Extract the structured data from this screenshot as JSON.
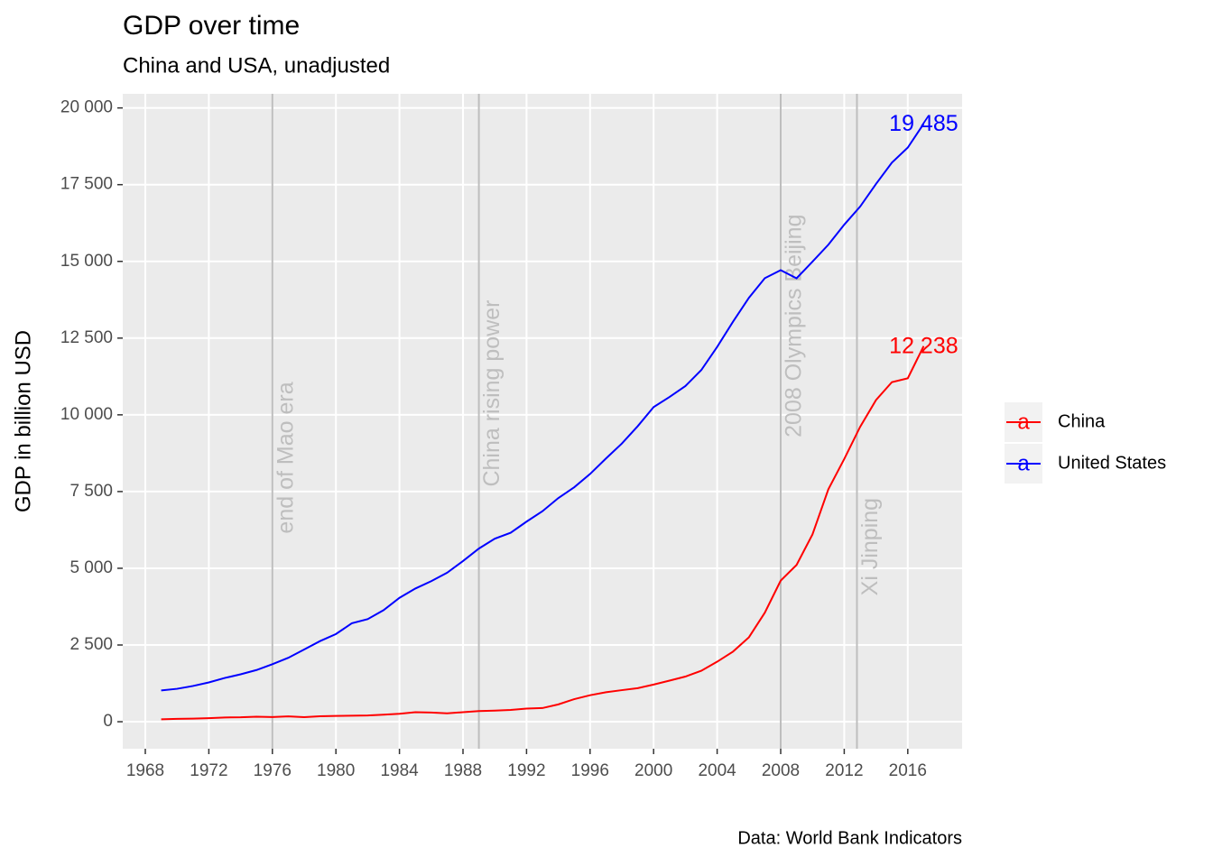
{
  "chart_data": {
    "type": "line",
    "title": "GDP over time",
    "subtitle": "China and USA, unadjusted",
    "y_label": "GDP in billion USD",
    "caption": "Data: World Bank Indicators",
    "x": [
      1969,
      1970,
      1971,
      1972,
      1973,
      1974,
      1975,
      1976,
      1977,
      1978,
      1979,
      1980,
      1981,
      1982,
      1983,
      1984,
      1985,
      1986,
      1987,
      1988,
      1989,
      1990,
      1991,
      1992,
      1993,
      1994,
      1995,
      1996,
      1997,
      1998,
      1999,
      2000,
      2001,
      2002,
      2003,
      2004,
      2005,
      2006,
      2007,
      2008,
      2009,
      2010,
      2011,
      2012,
      2013,
      2014,
      2015,
      2016,
      2017
    ],
    "series": [
      {
        "name": "China",
        "color": "#ff0000",
        "values": [
          80,
          93,
          100,
          114,
          139,
          144,
          163,
          154,
          175,
          150,
          178,
          191,
          196,
          205,
          231,
          260,
          310,
          301,
          273,
          312,
          348,
          361,
          383,
          427,
          445,
          564,
          735,
          864,
          962,
          1029,
          1094,
          1211,
          1339,
          1471,
          1660,
          1955,
          2286,
          2752,
          3552,
          4598,
          5110,
          6101,
          7573,
          8561,
          9607,
          10482,
          11065,
          11191,
          12238
        ],
        "value_labels": [
          null,
          null,
          null,
          null,
          null,
          null,
          null,
          null,
          null,
          null,
          null,
          null,
          null,
          null,
          null,
          null,
          null,
          null,
          null,
          null,
          null,
          null,
          null,
          null,
          null,
          null,
          null,
          null,
          null,
          null,
          null,
          null,
          null,
          null,
          null,
          null,
          null,
          null,
          null,
          null,
          null,
          null,
          null,
          null,
          null,
          null,
          null,
          null,
          "12 238"
        ]
      },
      {
        "name": "United States",
        "color": "#0000ff",
        "values": [
          1019,
          1073,
          1165,
          1280,
          1425,
          1545,
          1684,
          1873,
          2082,
          2352,
          2627,
          2857,
          3207,
          3343,
          3634,
          4037,
          4339,
          4580,
          4855,
          5236,
          5642,
          5963,
          6158,
          6520,
          6859,
          7287,
          7640,
          8073,
          8578,
          9063,
          9631,
          10252,
          10582,
          10936,
          11458,
          12214,
          13037,
          13815,
          14452,
          14713,
          14449,
          14992,
          15543,
          16197,
          16785,
          17522,
          18219,
          18707,
          19485
        ],
        "value_labels": [
          null,
          null,
          null,
          null,
          null,
          null,
          null,
          null,
          null,
          null,
          null,
          null,
          null,
          null,
          null,
          null,
          null,
          null,
          null,
          null,
          null,
          null,
          null,
          null,
          null,
          null,
          null,
          null,
          null,
          null,
          null,
          null,
          null,
          null,
          null,
          null,
          null,
          null,
          null,
          null,
          null,
          null,
          null,
          null,
          null,
          null,
          null,
          null,
          "19 485"
        ]
      }
    ],
    "annotations": [
      {
        "x": 1976,
        "y": 8600,
        "label": "end of Mao era"
      },
      {
        "x": 1989,
        "y": 10700,
        "label": "China rising power"
      },
      {
        "x": 2008,
        "y": 12900,
        "label": "2008 Olympics Beijing"
      },
      {
        "x": 2012.8,
        "y": 5700,
        "label": "Xi Jinping"
      }
    ],
    "annotation_color": "#bebebe",
    "xlim": [
      1966.58,
      2019.42
    ],
    "ylim": [
      -880,
      20460
    ],
    "xticks": [
      1968,
      1972,
      1976,
      1980,
      1984,
      1988,
      1992,
      1996,
      2000,
      2004,
      2008,
      2012,
      2016
    ],
    "yticks": [
      0,
      {
        "value": 2500,
        "label": "2 500"
      },
      {
        "value": 5000,
        "label": "5 000"
      },
      {
        "value": 7500,
        "label": "7 500"
      },
      {
        "value": 10000,
        "label": "10 000"
      },
      {
        "value": 12500,
        "label": "12 500"
      },
      {
        "value": 15000,
        "label": "15 000"
      },
      {
        "value": 17500,
        "label": "17 500"
      },
      {
        "value": 20000,
        "label": "20 000"
      }
    ],
    "grid": true,
    "legend": "right"
  }
}
